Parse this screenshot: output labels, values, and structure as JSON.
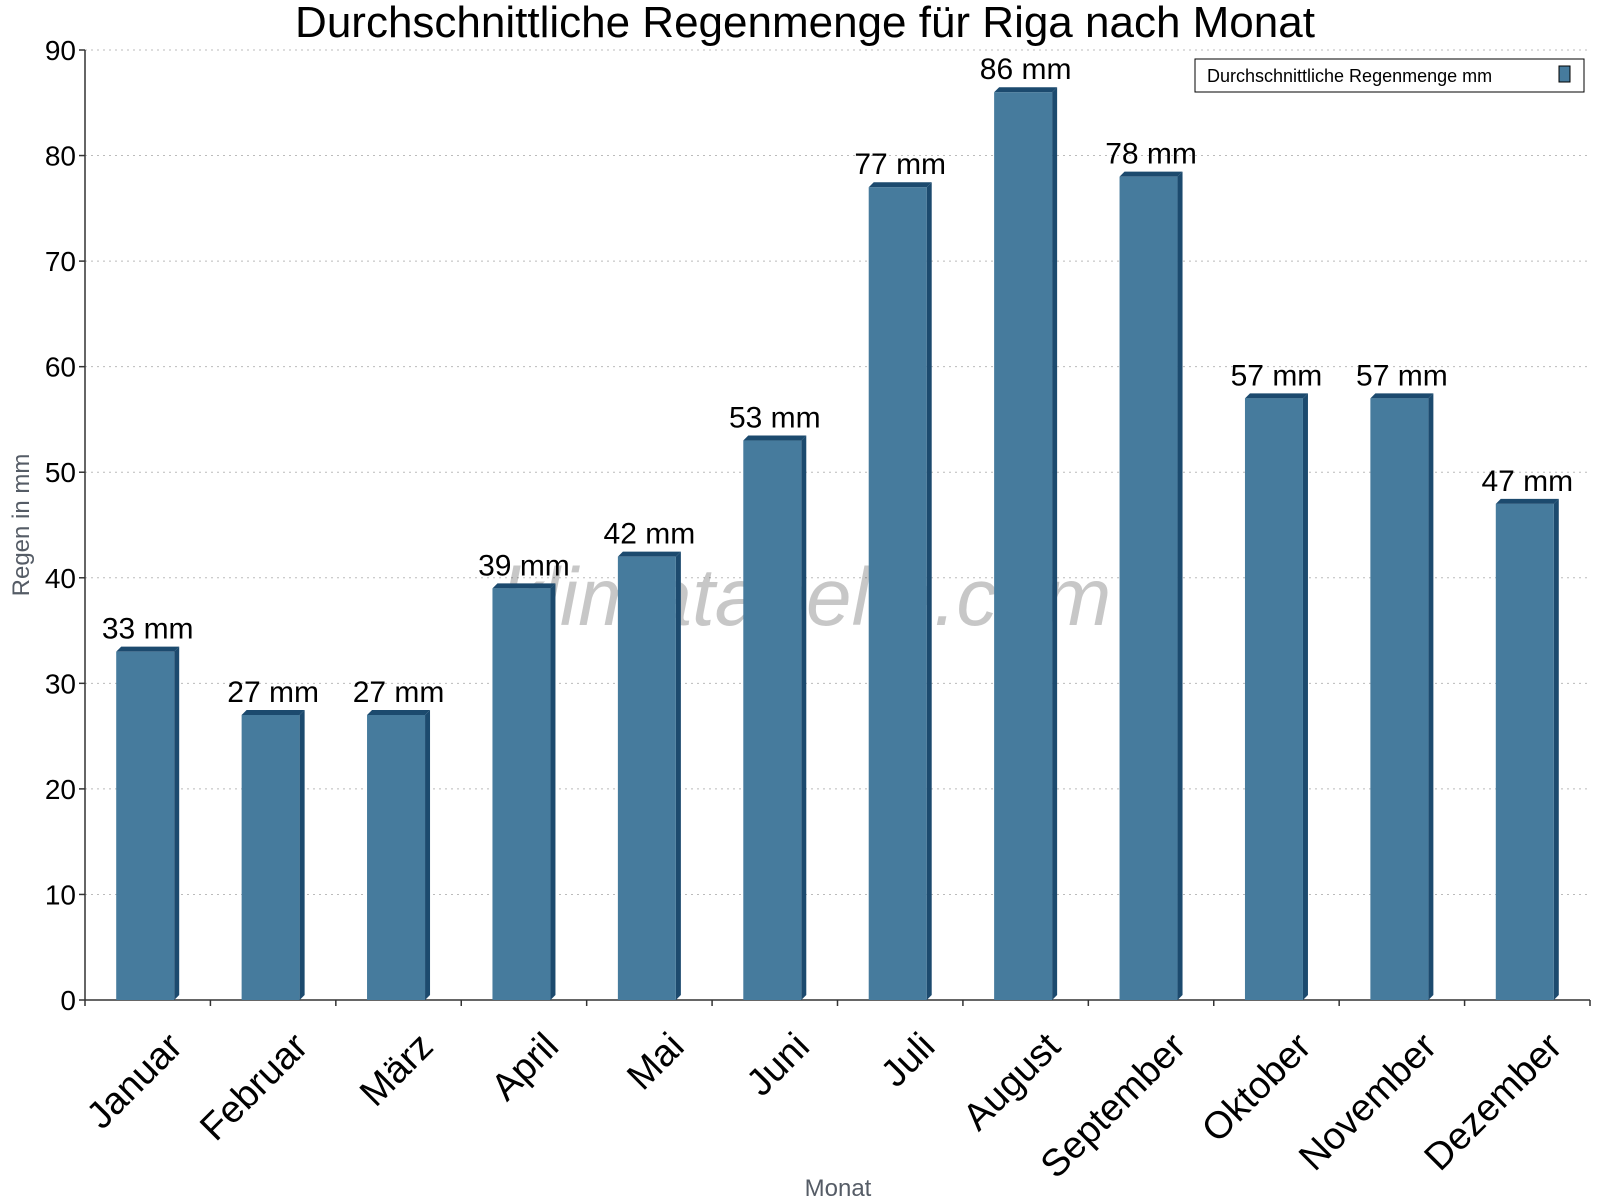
{
  "chart_data": {
    "type": "bar",
    "title": "Durchschnittliche Regenmenge für Riga nach Monat",
    "xlabel": "Monat",
    "ylabel": "Regen in mm",
    "ylim": [
      0,
      90
    ],
    "yticks": [
      0,
      10,
      20,
      30,
      40,
      50,
      60,
      70,
      80,
      90
    ],
    "categories": [
      "Januar",
      "Februar",
      "März",
      "April",
      "Mai",
      "Juni",
      "Juli",
      "August",
      "September",
      "Oktober",
      "November",
      "Dezember"
    ],
    "series": [
      {
        "name": "Durchschnittliche Regenmenge mm",
        "values": [
          33,
          27,
          27,
          39,
          42,
          53,
          77,
          86,
          78,
          57,
          57,
          47
        ],
        "labels": [
          "33 mm",
          "27 mm",
          "27 mm",
          "39 mm",
          "42 mm",
          "53 mm",
          "77 mm",
          "86 mm",
          "78 mm",
          "57 mm",
          "57 mm",
          "47 mm"
        ]
      }
    ],
    "legend_position": "top-right",
    "grid": "horizontal dotted",
    "watermark": "klimatabelle.com",
    "colors": {
      "bar": "#467b9d",
      "bar_side": "#1c4a6e",
      "grid": "#bbbbbb"
    }
  }
}
